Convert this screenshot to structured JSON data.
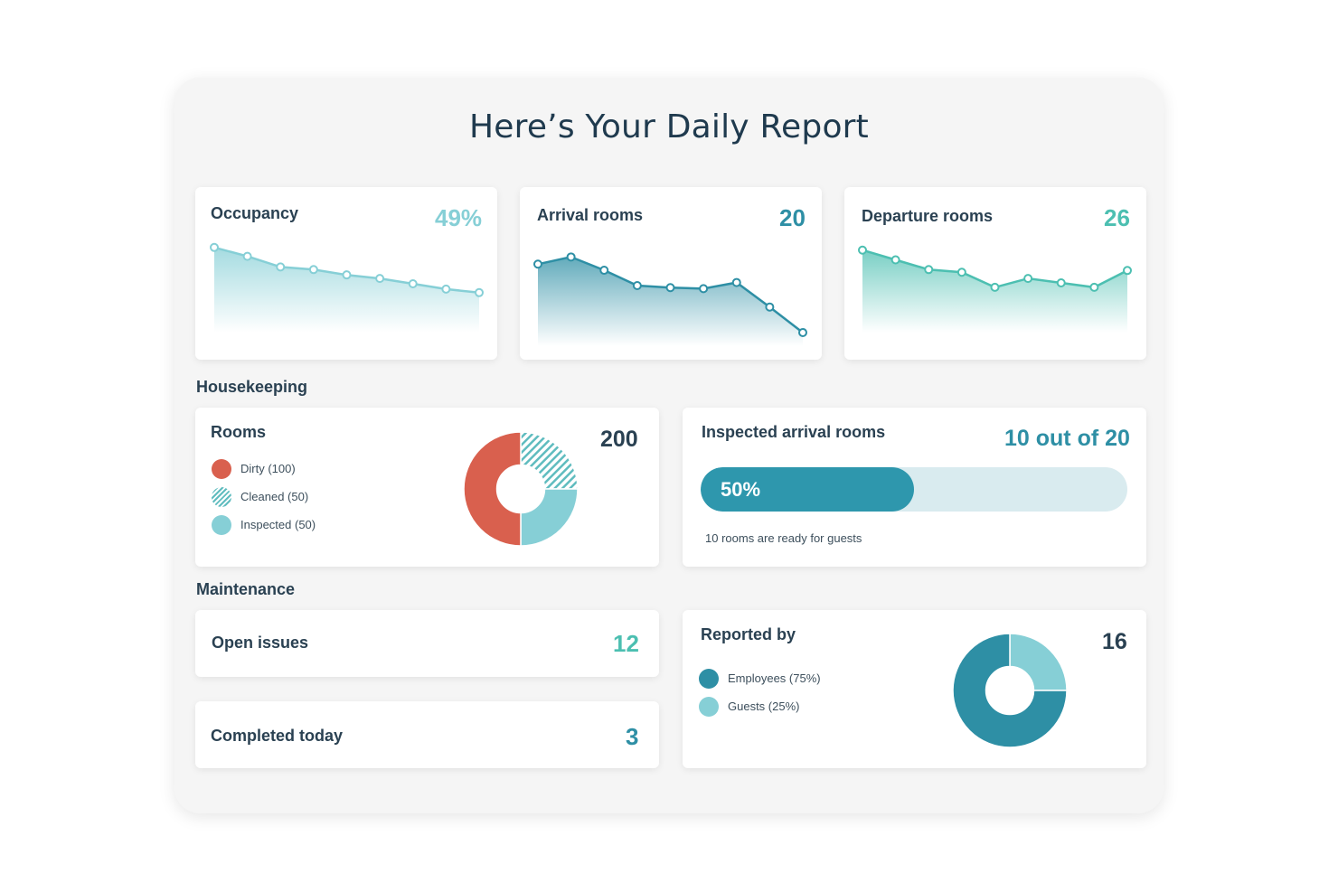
{
  "title": "Here’s Your Daily Report",
  "colors": {
    "light_teal": "#86cfd6",
    "dark_teal": "#2e8fa5",
    "green_teal": "#4cbfb1",
    "red": "#d9604e",
    "progress_track": "#d9ebef"
  },
  "kpis": [
    {
      "label": "Occupancy",
      "value": "49%"
    },
    {
      "label": "Arrival rooms",
      "value": "20"
    },
    {
      "label": "Departure rooms",
      "value": "26"
    }
  ],
  "housekeeping": {
    "section_label": "Housekeeping",
    "rooms": {
      "label": "Rooms",
      "total": "200",
      "legend": [
        {
          "label": "Dirty (100)",
          "icon": "filled-dot-icon",
          "color": "#d9604e"
        },
        {
          "label": "Cleaned (50)",
          "icon": "hatched-dot-icon",
          "color": "#5fbcbf"
        },
        {
          "label": "Inspected (50)",
          "icon": "filled-dot-icon",
          "color": "#86cfd6"
        }
      ]
    },
    "inspected": {
      "label": "Inspected arrival rooms",
      "value": "10 out of 20",
      "progress_text": "50%",
      "progress_fraction": 0.5,
      "caption": "10 rooms are ready for guests"
    }
  },
  "maintenance": {
    "section_label": "Maintenance",
    "open_issues": {
      "label": "Open issues",
      "value": "12"
    },
    "completed_today": {
      "label": "Completed today",
      "value": "3"
    },
    "reported_by": {
      "label": "Reported by",
      "total": "16",
      "legend": [
        {
          "label": "Employees (75%)",
          "color": "#2e8fa5"
        },
        {
          "label": "Guests (25%)",
          "color": "#86cfd6"
        }
      ]
    }
  },
  "chart_data": [
    {
      "type": "area",
      "title": "Occupancy",
      "series": [
        {
          "values": [
            90,
            80,
            68,
            65,
            59,
            55,
            49,
            43,
            39
          ]
        }
      ],
      "ylim": [
        0,
        100
      ],
      "color": "#86cfd6",
      "grid": false
    },
    {
      "type": "area",
      "title": "Arrival rooms",
      "series": [
        {
          "values": [
            75,
            82,
            69,
            54,
            52,
            51,
            57,
            33,
            8
          ]
        }
      ],
      "ylim": [
        0,
        100
      ],
      "color": "#2e8fa5",
      "grid": false
    },
    {
      "type": "area",
      "title": "Departure rooms",
      "series": [
        {
          "values": [
            87,
            76,
            65,
            62,
            45,
            55,
            50,
            45,
            64
          ]
        }
      ],
      "ylim": [
        0,
        100
      ],
      "color": "#4cbfb1",
      "grid": false
    },
    {
      "type": "pie",
      "title": "Rooms",
      "labels": [
        "Dirty",
        "Cleaned",
        "Inspected"
      ],
      "values": [
        100,
        50,
        50
      ],
      "colors": [
        "#d9604e",
        "#5fbcbf",
        "#86cfd6"
      ],
      "center_label": "200"
    },
    {
      "type": "pie",
      "title": "Reported by",
      "labels": [
        "Employees",
        "Guests"
      ],
      "values": [
        75,
        25
      ],
      "colors": [
        "#2e8fa5",
        "#86cfd6"
      ],
      "center_label": "16"
    }
  ]
}
